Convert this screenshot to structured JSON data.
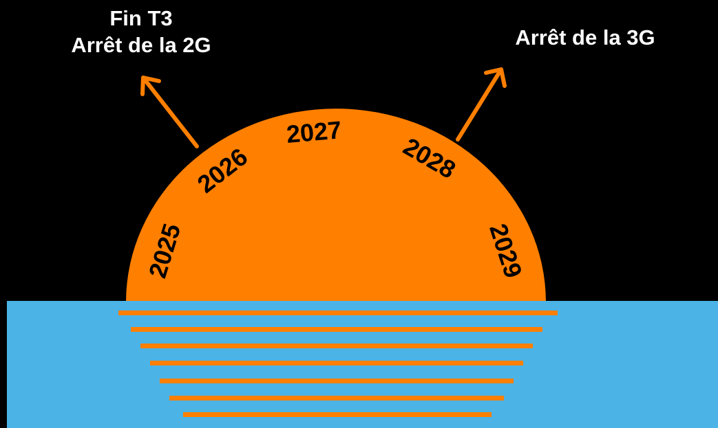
{
  "callouts": {
    "left_line1": "Fin T3",
    "left_line2": "Arrêt de la 2G",
    "right": "Arrêt de la 3G"
  },
  "years": [
    "2025",
    "2026",
    "2027",
    "2028",
    "2029"
  ],
  "colors": {
    "background": "#000000",
    "sun": "#ff7f00",
    "sea": "#4bb3e6",
    "arrow": "#ff7f00",
    "text_light": "#ffffff",
    "text_dark": "#000000"
  }
}
